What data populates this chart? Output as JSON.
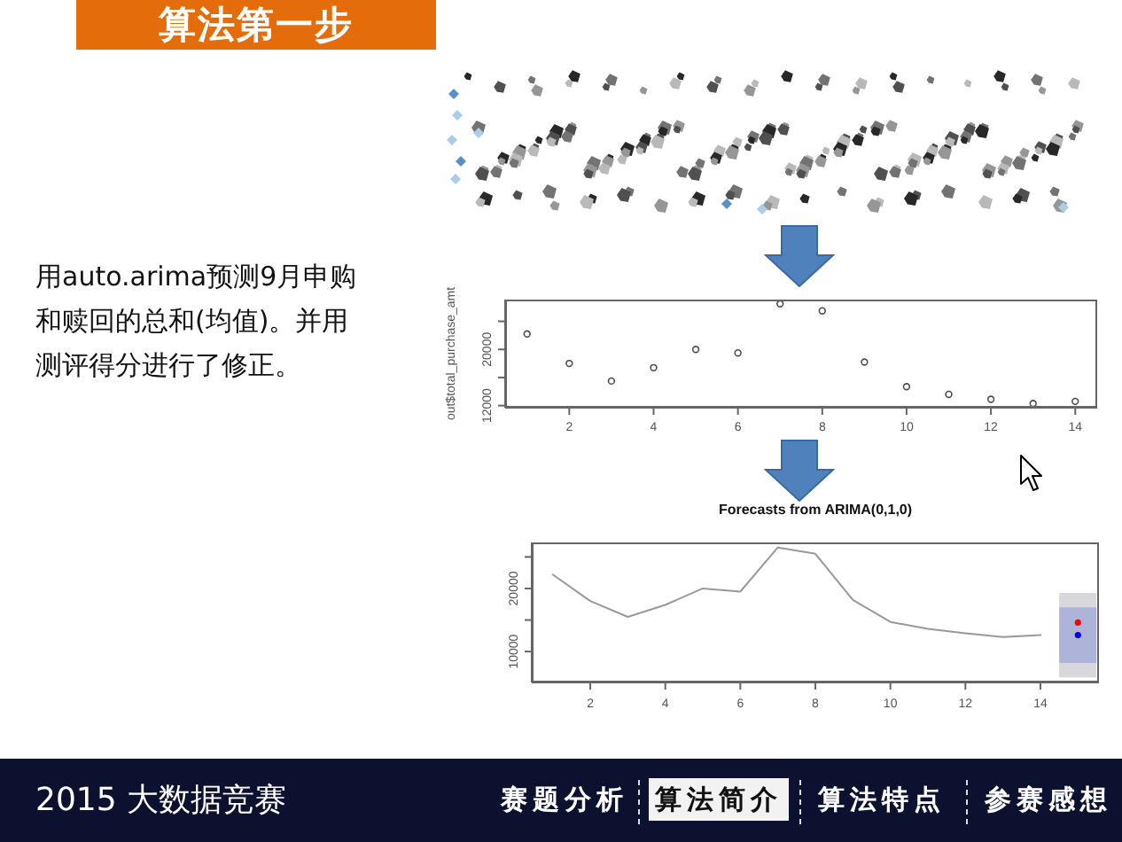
{
  "chart_data": [
    {
      "type": "other",
      "title": "算法第一步",
      "annotations": [
        "用auto.arima预测9月申购和赎回的总和(均值)。并用测评得分进行了修正。",
        "2015 大数据竞赛",
        "赛题分析",
        "算法简介",
        "算法特点",
        "参赛感想"
      ]
    },
    {
      "type": "scatter",
      "ylabel": "out$total_purchase_amt",
      "x": [
        1,
        2,
        3,
        4,
        5,
        6,
        7,
        8,
        9,
        10,
        11,
        12,
        13,
        14
      ],
      "values": [
        22200,
        18000,
        15500,
        17400,
        20000,
        19500,
        26500,
        25500,
        18200,
        14700,
        13600,
        12900,
        12300,
        12600
      ],
      "color": "#4d4d4d",
      "marker": "circle",
      "xlim": [
        0.48,
        14.52
      ],
      "ylim": [
        11700,
        27100
      ],
      "xticks": [
        2,
        4,
        6,
        8,
        10,
        12,
        14
      ],
      "yticks": [
        12000,
        {
          "value": 16000,
          "label": null
        },
        20000,
        {
          "value": 24000,
          "label": null
        }
      ]
    },
    {
      "type": "line",
      "title": "Forecasts from ARIMA(0,1,0)",
      "xlim": [
        0.44,
        15.56
      ],
      "ylim": [
        5100,
        27300
      ],
      "xticks": [
        2,
        4,
        6,
        8,
        10,
        12,
        14
      ],
      "yticks": [
        10000,
        {
          "value": 15000,
          "label": null
        },
        20000,
        {
          "value": 25000,
          "label": null
        }
      ],
      "series": [
        {
          "type": "line",
          "color": "#999999",
          "x": [
            1,
            2,
            3,
            4,
            5,
            6,
            7,
            8,
            9,
            10,
            11,
            12,
            13,
            14
          ],
          "values": [
            22200,
            18000,
            15500,
            17400,
            20000,
            19500,
            26500,
            25500,
            18200,
            14700,
            13600,
            12900,
            12300,
            12600
          ]
        },
        {
          "type": "bar",
          "color": "#d7d7dc",
          "x": [
            15
          ],
          "base": [
            5900
          ],
          "values": [
            13400
          ]
        },
        {
          "type": "bar",
          "color": "#aeb3d9",
          "x": [
            15
          ],
          "base": [
            8200
          ],
          "values": [
            8800
          ]
        },
        {
          "type": "scatter",
          "color": "#0000ff",
          "marker": "circle",
          "x": [
            15
          ],
          "values": [
            12600
          ]
        },
        {
          "type": "scatter",
          "color": "#ff0000",
          "marker": "circle",
          "x": [
            15
          ],
          "values": [
            14600
          ]
        }
      ]
    }
  ]
}
